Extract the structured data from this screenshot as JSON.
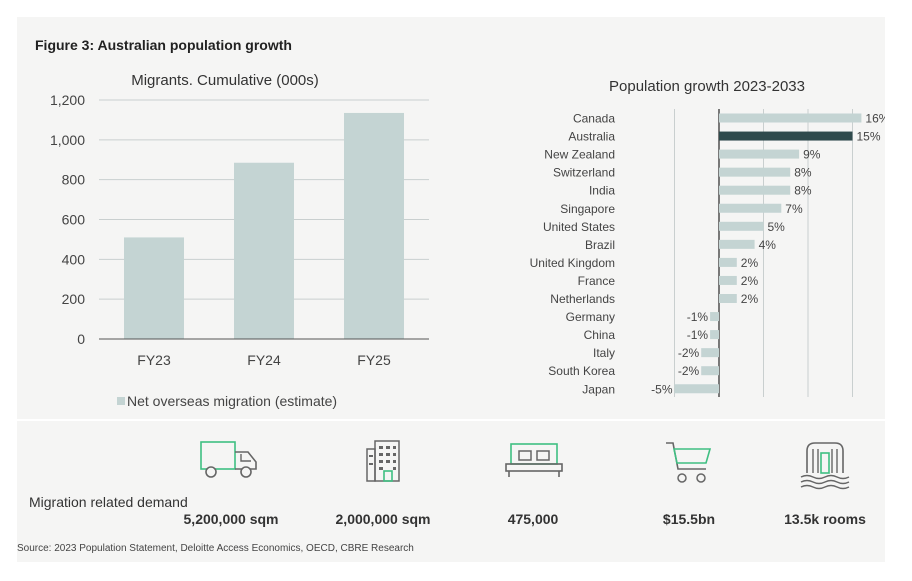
{
  "figure_title": "Figure 3: Australian population growth",
  "colors": {
    "bar": "#c4d4d3",
    "highlight": "#2f4a4c",
    "grid": "#c9cfcf",
    "axis": "#555555",
    "icon": "#3fbf82",
    "icon_dark": "#666666"
  },
  "chart_data": [
    {
      "type": "bar",
      "title": "Migrants. Cumulative (000s)",
      "categories": [
        "FY23",
        "FY24",
        "FY25"
      ],
      "series": [
        {
          "name": "Net overseas migration (estimate)",
          "values": [
            510,
            885,
            1135
          ]
        }
      ],
      "ylim": [
        0,
        1200
      ],
      "yticks": [
        0,
        200,
        400,
        600,
        800,
        1000,
        1200
      ],
      "ytick_labels": [
        "0",
        "200",
        "400",
        "600",
        "800",
        "1,000",
        "1,200"
      ],
      "grid": true,
      "legend": "bottom"
    },
    {
      "type": "bar",
      "orientation": "horizontal",
      "title": "Population growth 2023-2033",
      "categories": [
        "Canada",
        "Australia",
        "New Zealand",
        "Switzerland",
        "India",
        "Singapore",
        "United States",
        "Brazil",
        "United Kingdom",
        "France",
        "Netherlands",
        "Germany",
        "China",
        "Italy",
        "South Korea",
        "Japan"
      ],
      "values": [
        16,
        15,
        9,
        8,
        8,
        7,
        5,
        4,
        2,
        2,
        2,
        -1,
        -1,
        -2,
        -2,
        -5
      ],
      "value_labels": [
        "16%",
        "15%",
        "9%",
        "8%",
        "8%",
        "7%",
        "5%",
        "4%",
        "2%",
        "2%",
        "2%",
        "-1%",
        "-1%",
        "-2%",
        "-2%",
        "-5%"
      ],
      "highlight": "Australia",
      "xlim": [
        -5,
        16
      ],
      "grid": true
    }
  ],
  "demand": {
    "label": "Migration related demand",
    "items": [
      {
        "icon": "truck-icon",
        "value": "5,200,000 sqm"
      },
      {
        "icon": "office-building-icon",
        "value": "2,000,000 sqm"
      },
      {
        "icon": "bed-icon",
        "value": "475,000"
      },
      {
        "icon": "shopping-cart-icon",
        "value": "$15.5bn"
      },
      {
        "icon": "hotel-building-icon",
        "value": "13.5k rooms"
      }
    ]
  },
  "source": "Source: 2023 Population Statement, Deloitte Access Economics, OECD, CBRE Research"
}
